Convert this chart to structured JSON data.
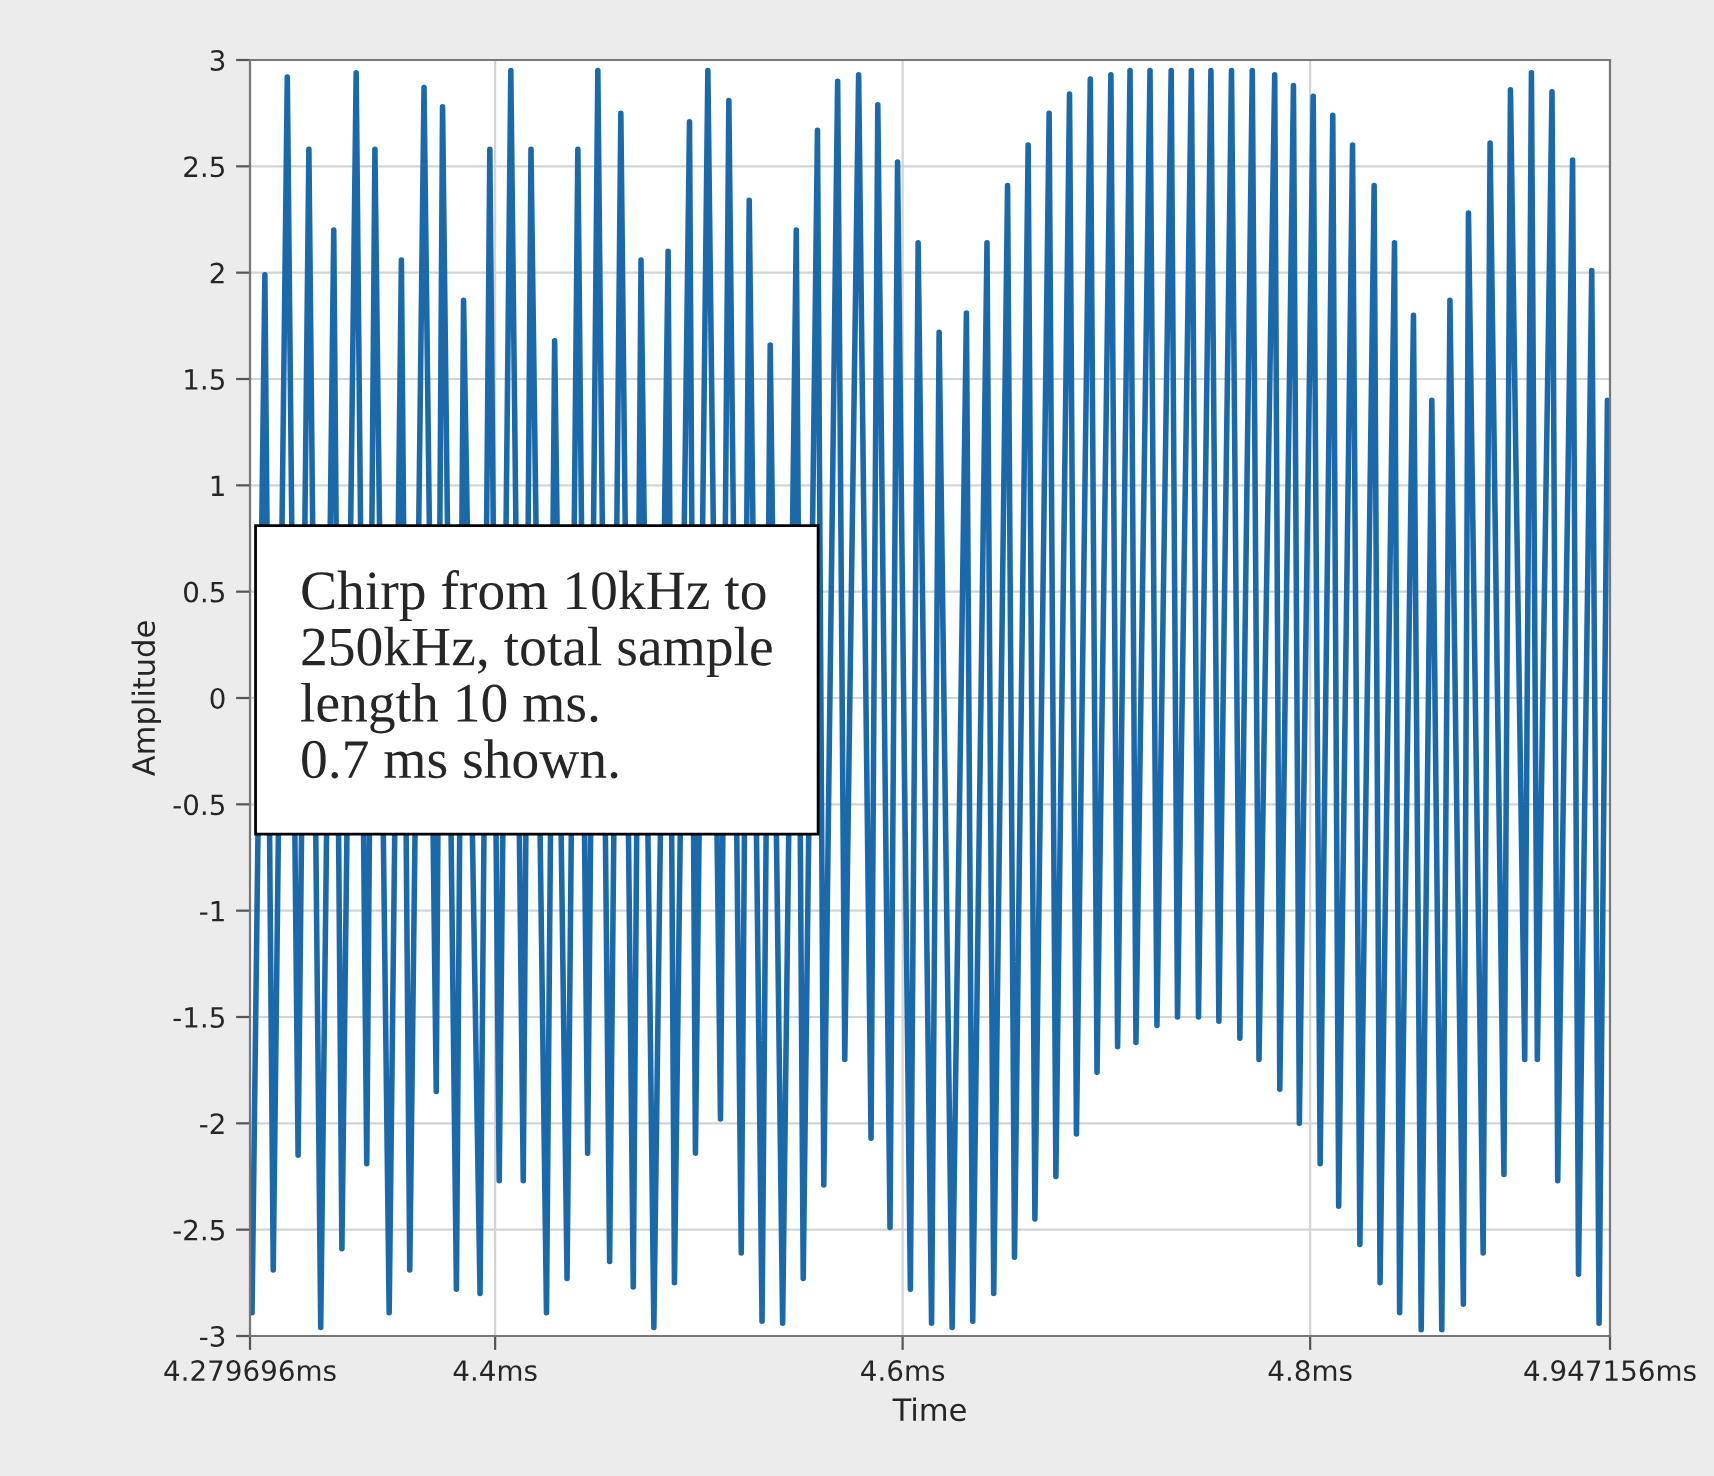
{
  "chart_data": {
    "type": "line",
    "xlabel": "Time",
    "ylabel": "Amplitude",
    "annotations": [
      "Chirp from 10kHz to\n250kHz, total sample\nlength 10 ms.\n0.7 ms shown."
    ],
    "xlim": [
      4.279696,
      4.947156
    ],
    "xticks": [
      {
        "value": 4.279696,
        "label": "4.279696ms"
      },
      {
        "value": 4.4,
        "label": "4.4ms"
      },
      {
        "value": 4.6,
        "label": "4.6ms"
      },
      {
        "value": 4.8,
        "label": "4.8ms"
      },
      {
        "value": 4.947156,
        "label": "4.947156ms"
      }
    ],
    "ylim": [
      -3,
      3
    ],
    "yticks": [
      -3,
      -2.5,
      -2,
      -1.5,
      -1,
      -0.5,
      0,
      0.5,
      1,
      1.5,
      2,
      2.5,
      3
    ],
    "grid": true,
    "series": [
      {
        "color": "#1a6aab",
        "x": [
          4.2807,
          4.287,
          4.2911,
          4.298,
          4.3033,
          4.3086,
          4.3144,
          4.3208,
          4.3248,
          4.3318,
          4.337,
          4.341,
          4.348,
          4.354,
          4.3581,
          4.3651,
          4.3711,
          4.3742,
          4.381,
          4.3845,
          4.3926,
          4.3974,
          4.402,
          4.4077,
          4.4138,
          4.4176,
          4.4252,
          4.4292,
          4.4353,
          4.4406,
          4.4454,
          4.4504,
          4.4562,
          4.4617,
          4.4678,
          4.4716,
          4.4779,
          4.4849,
          4.488,
          4.4954,
          4.4983,
          4.5044,
          4.5106,
          4.5147,
          4.5208,
          4.5247,
          4.531,
          4.535,
          4.5411,
          4.5478,
          4.5512,
          4.5582,
          4.5613,
          4.5681,
          4.5716,
          4.5784,
          4.5845,
          4.5878,
          4.5938,
          4.5975,
          4.6038,
          4.6076,
          4.6142,
          4.6179,
          4.6243,
          4.6313,
          4.6344,
          4.6414,
          4.6447,
          4.6515,
          4.6549,
          4.6616,
          4.6649,
          4.6719,
          4.6752,
          4.6819,
          4.6853,
          4.6921,
          4.6954,
          4.7022,
          4.7055,
          4.7116,
          4.7145,
          4.7214,
          4.7248,
          4.7318,
          4.7349,
          4.7417,
          4.7452,
          4.7513,
          4.7552,
          4.7614,
          4.7655,
          4.7716,
          4.7749,
          4.7826,
          4.7851,
          4.7918,
          4.7947,
          4.8015,
          4.8049,
          4.8111,
          4.814,
          4.8208,
          4.8244,
          4.8314,
          4.8343,
          4.8414,
          4.8439,
          4.8507,
          4.8545,
          4.8597,
          4.8646,
          4.8686,
          4.8752,
          4.8777,
          4.8849,
          4.8883,
          4.8951,
          4.8983,
          4.9053,
          4.9086,
          4.9115,
          4.9187,
          4.9215,
          4.9288,
          4.9317,
          4.9382,
          4.9418,
          4.9459,
          4.9471
        ],
        "values": [
          -2.89,
          1.99,
          -2.69,
          2.92,
          -2.15,
          2.58,
          -2.96,
          2.2,
          -2.59,
          2.94,
          -2.19,
          2.58,
          -2.89,
          2.06,
          -2.69,
          2.87,
          -1.85,
          2.78,
          -2.78,
          1.87,
          -2.8,
          2.58,
          -2.27,
          2.95,
          -2.27,
          2.58,
          -2.89,
          1.68,
          -2.73,
          2.58,
          -2.14,
          2.95,
          -2.65,
          2.75,
          -2.77,
          2.06,
          -2.96,
          2.1,
          -2.75,
          2.71,
          -2.14,
          2.95,
          -1.98,
          2.81,
          -2.61,
          2.34,
          -2.93,
          1.66,
          -2.94,
          2.2,
          -2.73,
          2.67,
          -2.29,
          2.9,
          -1.7,
          2.93,
          -2.07,
          2.79,
          -2.49,
          2.52,
          -2.78,
          2.14,
          -2.94,
          1.72,
          -2.96,
          1.81,
          -2.93,
          2.14,
          -2.8,
          2.41,
          -2.63,
          2.6,
          -2.45,
          2.75,
          -2.25,
          2.84,
          -2.05,
          2.91,
          -1.76,
          2.93,
          -1.64,
          2.95,
          -1.62,
          2.95,
          -1.54,
          2.95,
          -1.5,
          2.95,
          -1.5,
          2.95,
          -1.52,
          2.95,
          -1.6,
          2.95,
          -1.7,
          2.93,
          -1.84,
          2.88,
          -2.0,
          2.83,
          -2.19,
          2.74,
          -2.39,
          2.6,
          -2.57,
          2.41,
          -2.75,
          2.14,
          -2.89,
          1.8,
          -2.97,
          1.4,
          -2.97,
          1.87,
          -2.85,
          2.28,
          -2.61,
          2.61,
          -2.24,
          2.86,
          -1.7,
          2.94,
          -1.7,
          2.85,
          -2.27,
          2.53,
          -2.71,
          2.01,
          -2.94,
          1.4,
          1.3
        ]
      }
    ]
  }
}
